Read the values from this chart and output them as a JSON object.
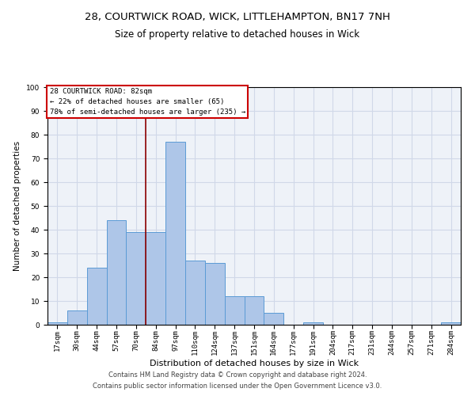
{
  "title1": "28, COURTWICK ROAD, WICK, LITTLEHAMPTON, BN17 7NH",
  "title2": "Size of property relative to detached houses in Wick",
  "xlabel": "Distribution of detached houses by size in Wick",
  "ylabel": "Number of detached properties",
  "footer1": "Contains HM Land Registry data © Crown copyright and database right 2024.",
  "footer2": "Contains public sector information licensed under the Open Government Licence v3.0.",
  "annotation_line1": "28 COURTWICK ROAD: 82sqm",
  "annotation_line2": "← 22% of detached houses are smaller (65)",
  "annotation_line3": "78% of semi-detached houses are larger (235) →",
  "bar_labels": [
    "17sqm",
    "30sqm",
    "44sqm",
    "57sqm",
    "70sqm",
    "84sqm",
    "97sqm",
    "110sqm",
    "124sqm",
    "137sqm",
    "151sqm",
    "164sqm",
    "177sqm",
    "191sqm",
    "204sqm",
    "217sqm",
    "231sqm",
    "244sqm",
    "257sqm",
    "271sqm",
    "284sqm"
  ],
  "bar_values": [
    1,
    6,
    24,
    44,
    39,
    39,
    77,
    27,
    26,
    12,
    12,
    5,
    0,
    1,
    0,
    0,
    0,
    0,
    0,
    0,
    1
  ],
  "bar_color": "#aec6e8",
  "bar_edge_color": "#5b9bd5",
  "vline_x": 4.5,
  "vline_color": "#8b0000",
  "ylim": [
    0,
    100
  ],
  "yticks": [
    0,
    10,
    20,
    30,
    40,
    50,
    60,
    70,
    80,
    90,
    100
  ],
  "grid_color": "#d0d8e8",
  "background_color": "#eef2f8",
  "annotation_box_color": "#ffffff",
  "annotation_box_edgecolor": "#cc0000",
  "title_fontsize": 9.5,
  "subtitle_fontsize": 8.5,
  "xlabel_fontsize": 8,
  "ylabel_fontsize": 7.5,
  "tick_fontsize": 6.5,
  "footer_fontsize": 6
}
